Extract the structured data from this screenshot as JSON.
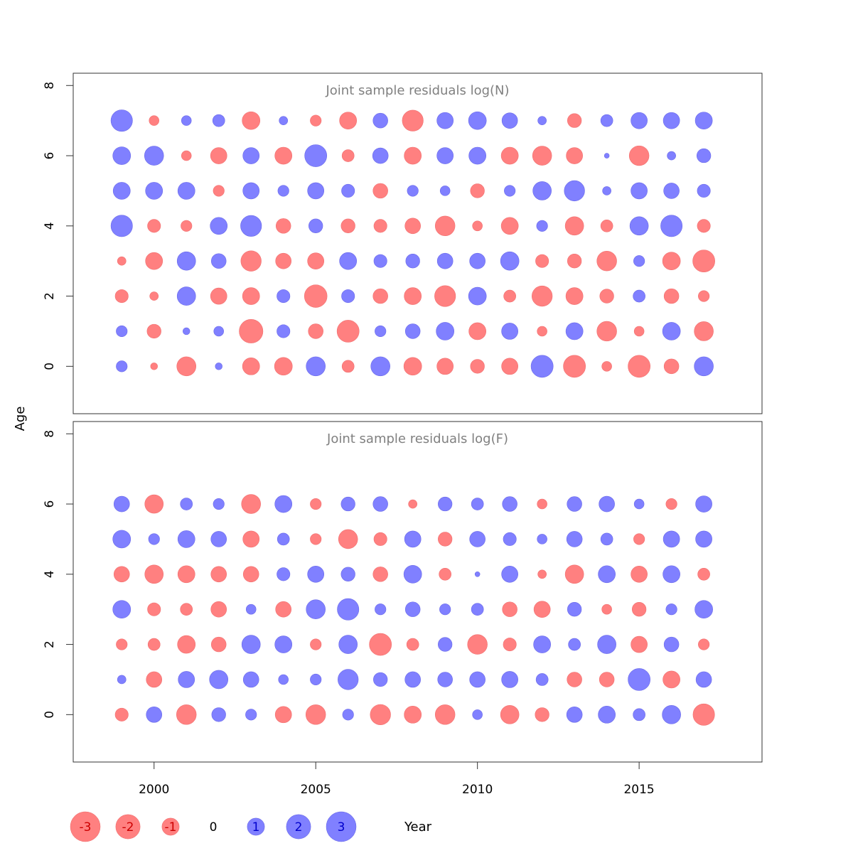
{
  "chart_data": {
    "type": "bubble",
    "xlabel": "Year",
    "ylabel": "Age",
    "xlim": [
      1997.5,
      2018.8
    ],
    "ylim": [
      -1.35,
      8.35
    ],
    "x_ticks": [
      2000,
      2005,
      2010,
      2015
    ],
    "y_ticks": [
      0,
      2,
      4,
      6,
      8
    ],
    "colors": {
      "positive": "#8080ff",
      "negative": "#ff8080",
      "positive_text": "#0000cc",
      "negative_text": "#cc0000"
    },
    "years": [
      1999,
      2000,
      2001,
      2002,
      2003,
      2004,
      2005,
      2006,
      2007,
      2008,
      2009,
      2010,
      2011,
      2012,
      2013,
      2014,
      2015,
      2016,
      2017
    ],
    "panels": [
      {
        "title": "Joint sample residuals log(N)",
        "ages": [
          0,
          1,
          2,
          3,
          4,
          5,
          6,
          7
        ],
        "residuals": [
          [
            0.5,
            -0.2,
            -1.5,
            0.2,
            -1.2,
            -1.3,
            1.5,
            -0.6,
            1.5,
            -1.3,
            -1.1,
            -0.8,
            -1.1,
            2.0,
            -2.0,
            -0.4,
            -2.0,
            -0.9,
            1.5
          ],
          [
            0.5,
            -0.8,
            0.2,
            0.4,
            -2.3,
            0.7,
            -0.9,
            -2.0,
            0.5,
            0.9,
            1.3,
            -1.2,
            1.1,
            -0.4,
            1.2,
            -1.6,
            -0.4,
            1.3,
            -1.5
          ],
          [
            -0.7,
            -0.3,
            1.4,
            -1.1,
            -1.2,
            0.7,
            -2.1,
            0.7,
            -0.9,
            -1.2,
            -1.8,
            1.3,
            -0.6,
            -1.7,
            -1.2,
            -0.8,
            0.6,
            -0.9,
            -0.5
          ],
          [
            -0.3,
            -1.2,
            1.4,
            0.9,
            -1.7,
            -1.0,
            -1.1,
            1.2,
            0.7,
            0.8,
            1.0,
            1.0,
            1.4,
            -0.7,
            -0.8,
            -1.6,
            0.5,
            -1.3,
            -2.0
          ],
          [
            1.9,
            -0.7,
            -0.5,
            1.2,
            1.8,
            -0.9,
            0.8,
            -0.8,
            -0.7,
            -1.0,
            -1.6,
            -0.4,
            -1.2,
            0.5,
            -1.4,
            -0.6,
            1.4,
            1.9,
            -0.7
          ],
          [
            1.2,
            1.2,
            1.2,
            -0.5,
            1.1,
            0.5,
            1.1,
            0.7,
            -0.9,
            0.5,
            0.4,
            -0.8,
            0.5,
            1.4,
            1.7,
            0.3,
            1.1,
            1.0,
            0.7
          ],
          [
            1.3,
            1.5,
            -0.4,
            -1.1,
            1.1,
            -1.2,
            2.0,
            -0.6,
            1.0,
            -1.2,
            1.1,
            1.2,
            -1.2,
            -1.5,
            -1.1,
            0.1,
            -1.6,
            0.3,
            0.8
          ],
          [
            1.9,
            -0.4,
            0.4,
            0.6,
            -1.3,
            0.3,
            -0.5,
            -1.2,
            0.9,
            -1.8,
            1.1,
            1.3,
            1.0,
            0.3,
            -0.8,
            0.6,
            1.1,
            1.1,
            1.2
          ]
        ]
      },
      {
        "title": "Joint sample residuals log(F)",
        "ages": [
          0,
          1,
          2,
          3,
          4,
          5,
          6
        ],
        "residuals": [
          [
            -0.7,
            1.0,
            -1.6,
            0.8,
            0.5,
            -1.1,
            -1.6,
            0.5,
            -1.7,
            -1.2,
            -1.6,
            0.4,
            -1.4,
            -0.8,
            1.0,
            1.2,
            0.6,
            1.4,
            -1.9
          ],
          [
            0.3,
            -1.0,
            1.1,
            1.4,
            1.0,
            0.4,
            0.5,
            1.7,
            0.8,
            1.0,
            0.9,
            1.0,
            1.1,
            0.6,
            -0.9,
            -0.9,
            2.0,
            -1.2,
            1.0
          ],
          [
            -0.5,
            -0.6,
            -1.3,
            -0.9,
            1.4,
            1.2,
            -0.5,
            1.4,
            -2.0,
            -0.6,
            0.8,
            -1.6,
            -0.7,
            1.2,
            0.6,
            1.4,
            -1.1,
            0.9,
            -0.5
          ],
          [
            1.3,
            -0.7,
            -0.6,
            -1.0,
            0.4,
            -1.0,
            1.5,
            1.9,
            0.5,
            0.9,
            0.5,
            0.6,
            -0.9,
            -1.1,
            0.8,
            -0.4,
            -0.8,
            0.5,
            1.3
          ],
          [
            -1.0,
            -1.4,
            -1.2,
            -1.0,
            -1.0,
            0.7,
            1.1,
            0.8,
            -0.9,
            1.3,
            -0.6,
            0.1,
            1.1,
            -0.3,
            -1.4,
            1.2,
            -1.1,
            1.2,
            -0.6
          ],
          [
            1.3,
            0.5,
            1.2,
            1.0,
            -1.1,
            0.6,
            -0.5,
            -1.5,
            -0.7,
            1.1,
            -0.8,
            1.0,
            0.7,
            0.4,
            1.0,
            0.6,
            -0.5,
            1.1,
            1.1
          ],
          [
            1.0,
            -1.4,
            0.6,
            0.5,
            -1.5,
            1.2,
            -0.5,
            0.8,
            0.9,
            -0.3,
            0.8,
            0.6,
            0.9,
            -0.4,
            0.9,
            1.0,
            0.4,
            -0.5,
            1.1
          ]
        ]
      }
    ],
    "legend": {
      "position": "bottom",
      "values": [
        -3,
        -2,
        -1,
        0,
        1,
        2,
        3
      ],
      "labels": [
        "-3",
        "-2",
        "-1",
        "0",
        "1",
        "2",
        "3"
      ]
    }
  }
}
